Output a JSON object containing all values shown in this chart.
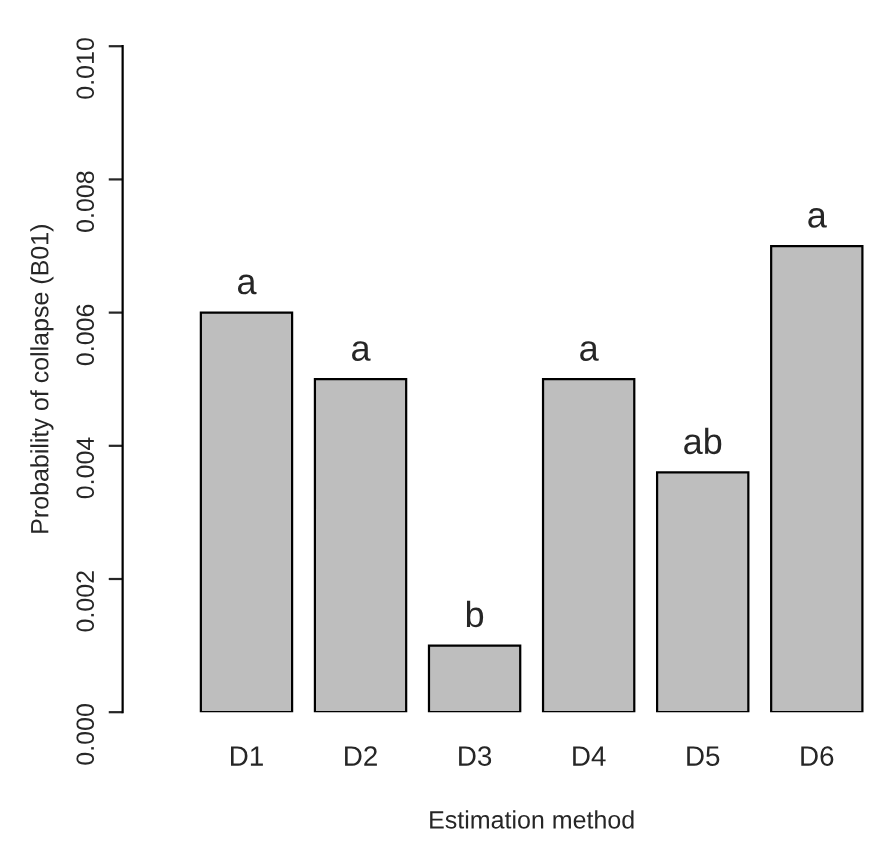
{
  "chart_data": {
    "type": "bar",
    "xlabel": "Estimation method",
    "ylabel": "Probability of collapse (B01)",
    "categories": [
      "D1",
      "D2",
      "D3",
      "D4",
      "D5",
      "D6"
    ],
    "values": [
      0.006,
      0.005,
      0.001,
      0.005,
      0.0036,
      0.007
    ],
    "color": "#bebebe",
    "ylim": [
      0,
      0.01
    ],
    "yticks": [
      {
        "value": 0,
        "label": "0.000"
      },
      {
        "value": 0.002,
        "label": "0.002"
      },
      {
        "value": 0.004,
        "label": "0.004"
      },
      {
        "value": 0.006,
        "label": "0.006"
      },
      {
        "value": 0.008,
        "label": "0.008"
      },
      {
        "value": 0.01,
        "label": "0.010"
      }
    ],
    "grid": false,
    "annotations": [
      {
        "text": "a",
        "x": "D1",
        "y": 0.006
      },
      {
        "text": "a",
        "x": "D2",
        "y": 0.005
      },
      {
        "text": "b",
        "x": "D3",
        "y": 0.001
      },
      {
        "text": "a",
        "x": "D4",
        "y": 0.005
      },
      {
        "text": "ab",
        "x": "D5",
        "y": 0.0036
      },
      {
        "text": "a",
        "x": "D6",
        "y": 0.007
      }
    ]
  }
}
